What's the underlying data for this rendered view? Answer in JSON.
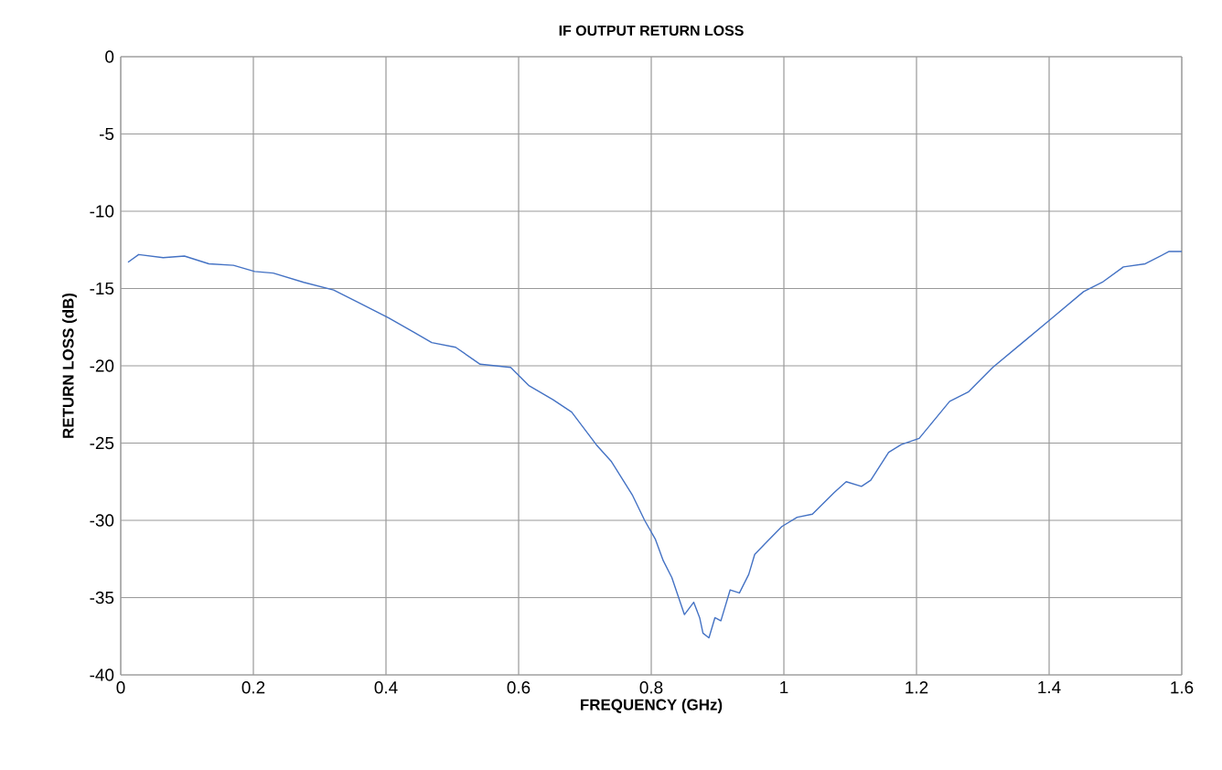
{
  "chart_data": {
    "type": "line",
    "title": "IF OUTPUT RETURN LOSS",
    "xlabel": "FREQUENCY (GHz)",
    "ylabel": "RETURN LOSS (dB)",
    "xlim": [
      0,
      1.6
    ],
    "ylim": [
      -40,
      0
    ],
    "xticks": [
      0,
      0.2,
      0.4,
      0.6,
      0.8,
      1,
      1.2,
      1.4,
      1.6
    ],
    "yticks": [
      -40,
      -35,
      -30,
      -25,
      -20,
      -15,
      -10,
      -5,
      0
    ],
    "grid": true,
    "series": [
      {
        "color": "#4472c4",
        "x": [
          0.011,
          0.027,
          0.064,
          0.096,
          0.133,
          0.17,
          0.202,
          0.23,
          0.276,
          0.321,
          0.358,
          0.404,
          0.441,
          0.469,
          0.505,
          0.542,
          0.588,
          0.616,
          0.652,
          0.68,
          0.717,
          0.74,
          0.772,
          0.79,
          0.806,
          0.818,
          0.831,
          0.85,
          0.864,
          0.873,
          0.878,
          0.887,
          0.896,
          0.905,
          0.919,
          0.933,
          0.947,
          0.956,
          0.974,
          0.997,
          1.02,
          1.043,
          1.076,
          1.094,
          1.117,
          1.131,
          1.158,
          1.177,
          1.204,
          1.227,
          1.25,
          1.278,
          1.315,
          1.36,
          1.402,
          1.452,
          1.48,
          1.512,
          1.545,
          1.581,
          1.6
        ],
        "values": [
          -13.3,
          -12.8,
          -13.0,
          -12.9,
          -13.4,
          -13.5,
          -13.9,
          -14.0,
          -14.6,
          -15.1,
          -15.9,
          -16.9,
          -17.8,
          -18.5,
          -18.8,
          -19.9,
          -20.1,
          -21.3,
          -22.2,
          -23.0,
          -25.1,
          -26.2,
          -28.4,
          -30.0,
          -31.2,
          -32.6,
          -33.7,
          -36.1,
          -35.3,
          -36.3,
          -37.3,
          -37.6,
          -36.3,
          -36.5,
          -34.5,
          -34.7,
          -33.5,
          -32.2,
          -31.4,
          -30.4,
          -29.8,
          -29.6,
          -28.2,
          -27.5,
          -27.8,
          -27.4,
          -25.6,
          -25.1,
          -24.7,
          -23.5,
          -22.3,
          -21.7,
          -20.1,
          -18.5,
          -17.0,
          -15.2,
          -14.6,
          -13.6,
          -13.4,
          -12.6,
          -12.6
        ]
      }
    ]
  }
}
